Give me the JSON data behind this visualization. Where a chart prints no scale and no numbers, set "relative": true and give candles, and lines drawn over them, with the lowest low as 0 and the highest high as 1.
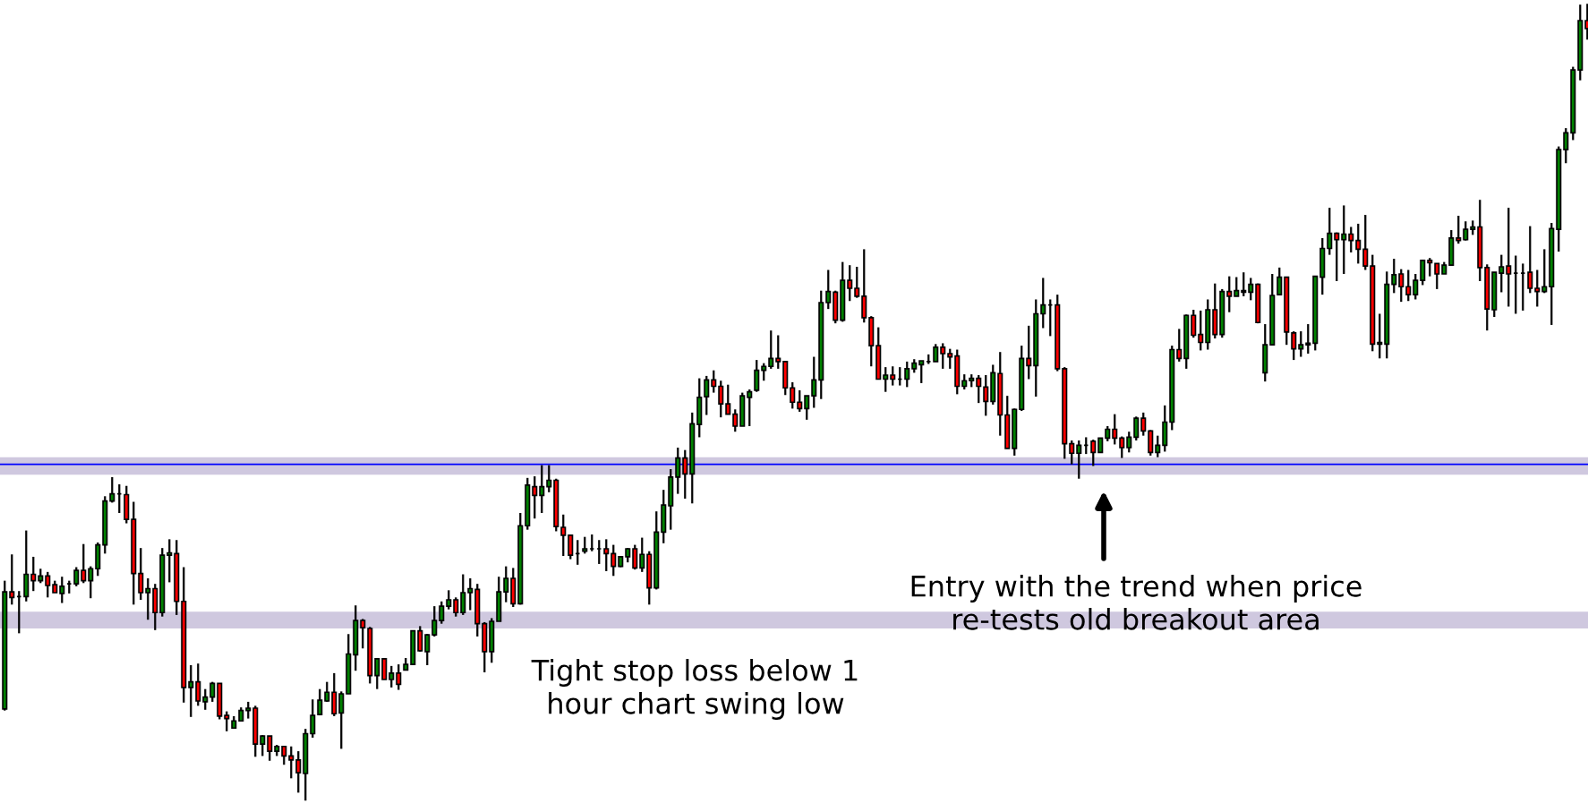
{
  "chart_data": {
    "type": "candlestick",
    "relative": true,
    "grid": false,
    "legend": false,
    "categories": [
      null,
      null,
      null,
      null,
      null,
      null,
      null,
      null,
      null,
      null,
      null,
      null,
      null,
      null,
      null,
      null,
      null,
      null,
      null,
      null,
      null,
      null,
      null,
      null,
      null,
      null,
      null,
      null,
      null,
      null,
      null,
      null,
      null,
      null,
      null,
      null,
      null,
      null,
      null,
      null,
      null,
      null,
      null,
      null,
      null,
      null,
      null,
      null,
      null,
      null,
      null,
      null,
      null,
      null,
      null,
      null,
      null,
      null,
      null,
      null,
      null,
      null,
      null,
      null,
      null,
      null,
      null,
      null,
      null,
      null,
      null,
      null,
      null,
      null,
      null,
      null,
      null,
      null,
      null,
      null,
      null,
      null,
      null,
      null,
      null,
      null,
      null,
      null,
      null,
      null,
      null,
      null,
      null,
      null,
      null,
      null,
      null,
      null,
      null,
      null,
      null,
      null,
      null,
      null,
      null,
      null,
      null,
      null,
      null,
      null,
      null,
      null,
      null,
      null,
      null,
      null,
      null,
      null,
      null,
      null,
      null,
      null,
      null,
      null,
      null,
      null,
      null,
      null,
      null,
      null,
      null,
      null,
      null,
      null,
      null,
      null,
      null,
      null,
      null,
      null,
      null,
      null,
      null,
      null,
      null,
      null,
      null,
      null,
      null,
      null,
      null,
      null,
      null,
      null,
      null,
      null,
      null,
      null,
      null,
      null,
      null,
      null,
      null,
      null,
      null,
      null,
      null,
      null,
      null,
      null,
      null,
      null,
      null,
      null,
      null,
      null,
      null,
      null,
      null,
      null,
      null,
      null,
      null,
      null,
      null,
      null,
      null,
      null,
      null,
      null,
      null,
      null,
      null,
      null,
      null,
      null,
      null,
      null,
      null,
      null,
      null,
      null,
      null,
      null,
      null,
      null,
      null,
      null,
      null,
      null,
      null,
      null,
      null,
      null,
      null,
      null,
      null,
      null,
      null,
      null,
      null,
      null
    ],
    "ohlc": [
      [
        0.115,
        0.276,
        0.113,
        0.262
      ],
      [
        0.262,
        0.309,
        0.246,
        0.255
      ],
      [
        0.256,
        0.263,
        0.21,
        0.256
      ],
      [
        0.256,
        0.339,
        0.25,
        0.284
      ],
      [
        0.284,
        0.306,
        0.263,
        0.276
      ],
      [
        0.276,
        0.291,
        0.273,
        0.282
      ],
      [
        0.282,
        0.287,
        0.255,
        0.27
      ],
      [
        0.271,
        0.276,
        0.261,
        0.261
      ],
      [
        0.26,
        0.281,
        0.248,
        0.269
      ],
      [
        0.272,
        0.276,
        0.26,
        0.272
      ],
      [
        0.272,
        0.293,
        0.269,
        0.289
      ],
      [
        0.289,
        0.322,
        0.273,
        0.276
      ],
      [
        0.276,
        0.294,
        0.254,
        0.291
      ],
      [
        0.291,
        0.324,
        0.282,
        0.321
      ],
      [
        0.321,
        0.382,
        0.31,
        0.376
      ],
      [
        0.376,
        0.406,
        0.374,
        0.385
      ],
      [
        0.385,
        0.397,
        0.361,
        0.385
      ],
      [
        0.384,
        0.395,
        0.348,
        0.353
      ],
      [
        0.353,
        0.375,
        0.246,
        0.285
      ],
      [
        0.285,
        0.317,
        0.252,
        0.261
      ],
      [
        0.261,
        0.279,
        0.227,
        0.266
      ],
      [
        0.266,
        0.272,
        0.214,
        0.236
      ],
      [
        0.236,
        0.317,
        0.231,
        0.308
      ],
      [
        0.308,
        0.328,
        0.274,
        0.311
      ],
      [
        0.31,
        0.327,
        0.233,
        0.25
      ],
      [
        0.25,
        0.293,
        0.123,
        0.142
      ],
      [
        0.142,
        0.17,
        0.105,
        0.149
      ],
      [
        0.149,
        0.172,
        0.119,
        0.125
      ],
      [
        0.124,
        0.14,
        0.114,
        0.13
      ],
      [
        0.13,
        0.149,
        0.124,
        0.147
      ],
      [
        0.147,
        0.147,
        0.102,
        0.106
      ],
      [
        0.107,
        0.112,
        0.087,
        0.103
      ],
      [
        0.091,
        0.106,
        0.091,
        0.1
      ],
      [
        0.1,
        0.117,
        0.1,
        0.113
      ],
      [
        0.113,
        0.124,
        0.103,
        0.116
      ],
      [
        0.116,
        0.119,
        0.055,
        0.071
      ],
      [
        0.071,
        0.082,
        0.056,
        0.081
      ],
      [
        0.081,
        0.081,
        0.05,
        0.062
      ],
      [
        0.062,
        0.07,
        0.056,
        0.068
      ],
      [
        0.068,
        0.068,
        0.045,
        0.056
      ],
      [
        0.056,
        0.068,
        0.028,
        0.051
      ],
      [
        0.051,
        0.062,
        0.01,
        0.035
      ],
      [
        0.034,
        0.09,
        0.0,
        0.084
      ],
      [
        0.084,
        0.127,
        0.079,
        0.107
      ],
      [
        0.108,
        0.14,
        0.107,
        0.126
      ],
      [
        0.125,
        0.149,
        0.124,
        0.136
      ],
      [
        0.136,
        0.16,
        0.106,
        0.109
      ],
      [
        0.11,
        0.137,
        0.065,
        0.134
      ],
      [
        0.134,
        0.209,
        0.134,
        0.184
      ],
      [
        0.183,
        0.245,
        0.163,
        0.226
      ],
      [
        0.226,
        0.228,
        0.191,
        0.217
      ],
      [
        0.216,
        0.218,
        0.147,
        0.157
      ],
      [
        0.157,
        0.179,
        0.14,
        0.178
      ],
      [
        0.178,
        0.178,
        0.152,
        0.152
      ],
      [
        0.152,
        0.169,
        0.142,
        0.16
      ],
      [
        0.16,
        0.171,
        0.139,
        0.146
      ],
      [
        0.164,
        0.179,
        0.164,
        0.171
      ],
      [
        0.171,
        0.213,
        0.17,
        0.213
      ],
      [
        0.213,
        0.219,
        0.187,
        0.188
      ],
      [
        0.187,
        0.209,
        0.17,
        0.208
      ],
      [
        0.208,
        0.244,
        0.206,
        0.226
      ],
      [
        0.226,
        0.25,
        0.222,
        0.244
      ],
      [
        0.244,
        0.264,
        0.24,
        0.252
      ],
      [
        0.252,
        0.255,
        0.231,
        0.236
      ],
      [
        0.236,
        0.284,
        0.233,
        0.261
      ],
      [
        0.261,
        0.279,
        0.239,
        0.266
      ],
      [
        0.265,
        0.272,
        0.206,
        0.222
      ],
      [
        0.222,
        0.224,
        0.161,
        0.187
      ],
      [
        0.187,
        0.229,
        0.173,
        0.225
      ],
      [
        0.225,
        0.281,
        0.225,
        0.262
      ],
      [
        0.262,
        0.294,
        0.249,
        0.279
      ],
      [
        0.279,
        0.292,
        0.243,
        0.247
      ],
      [
        0.247,
        0.361,
        0.246,
        0.345
      ],
      [
        0.345,
        0.405,
        0.34,
        0.396
      ],
      [
        0.394,
        0.407,
        0.354,
        0.383
      ],
      [
        0.383,
        0.421,
        0.361,
        0.394
      ],
      [
        0.394,
        0.421,
        0.387,
        0.402
      ],
      [
        0.402,
        0.404,
        0.338,
        0.344
      ],
      [
        0.343,
        0.359,
        0.307,
        0.333
      ],
      [
        0.333,
        0.334,
        0.303,
        0.308
      ],
      [
        0.31,
        0.327,
        0.296,
        0.31
      ],
      [
        0.313,
        0.331,
        0.31,
        0.316
      ],
      [
        0.316,
        0.334,
        0.313,
        0.316
      ],
      [
        0.316,
        0.327,
        0.297,
        0.316
      ],
      [
        0.316,
        0.328,
        0.288,
        0.31
      ],
      [
        0.31,
        0.321,
        0.282,
        0.294
      ],
      [
        0.294,
        0.307,
        0.293,
        0.306
      ],
      [
        0.306,
        0.317,
        0.299,
        0.316
      ],
      [
        0.316,
        0.321,
        0.29,
        0.292
      ],
      [
        0.292,
        0.33,
        0.287,
        0.309
      ],
      [
        0.309,
        0.313,
        0.246,
        0.267
      ],
      [
        0.267,
        0.363,
        0.265,
        0.337
      ],
      [
        0.337,
        0.39,
        0.323,
        0.371
      ],
      [
        0.37,
        0.416,
        0.34,
        0.406
      ],
      [
        0.406,
        0.443,
        0.385,
        0.43
      ],
      [
        0.43,
        0.44,
        0.379,
        0.41
      ],
      [
        0.41,
        0.487,
        0.373,
        0.473
      ],
      [
        0.472,
        0.53,
        0.456,
        0.506
      ],
      [
        0.507,
        0.533,
        0.484,
        0.528
      ],
      [
        0.528,
        0.54,
        0.512,
        0.52
      ],
      [
        0.52,
        0.527,
        0.481,
        0.498
      ],
      [
        0.498,
        0.522,
        0.485,
        0.485
      ],
      [
        0.485,
        0.491,
        0.463,
        0.47
      ],
      [
        0.47,
        0.512,
        0.47,
        0.508
      ],
      [
        0.506,
        0.516,
        0.47,
        0.513
      ],
      [
        0.515,
        0.553,
        0.513,
        0.54
      ],
      [
        0.54,
        0.549,
        0.527,
        0.545
      ],
      [
        0.545,
        0.59,
        0.542,
        0.555
      ],
      [
        0.555,
        0.584,
        0.542,
        0.551
      ],
      [
        0.551,
        0.551,
        0.509,
        0.518
      ],
      [
        0.518,
        0.525,
        0.492,
        0.5
      ],
      [
        0.5,
        0.515,
        0.488,
        0.492
      ],
      [
        0.492,
        0.508,
        0.478,
        0.508
      ],
      [
        0.508,
        0.557,
        0.493,
        0.528
      ],
      [
        0.528,
        0.64,
        0.504,
        0.625
      ],
      [
        0.625,
        0.666,
        0.617,
        0.639
      ],
      [
        0.638,
        0.64,
        0.599,
        0.603
      ],
      [
        0.603,
        0.676,
        0.601,
        0.653
      ],
      [
        0.653,
        0.672,
        0.627,
        0.643
      ],
      [
        0.643,
        0.67,
        0.631,
        0.633
      ],
      [
        0.633,
        0.692,
        0.6,
        0.606
      ],
      [
        0.606,
        0.608,
        0.545,
        0.571
      ],
      [
        0.571,
        0.594,
        0.529,
        0.529
      ],
      [
        0.529,
        0.544,
        0.513,
        0.534
      ],
      [
        0.534,
        0.545,
        0.521,
        0.529
      ],
      [
        0.529,
        0.544,
        0.521,
        0.529
      ],
      [
        0.529,
        0.551,
        0.519,
        0.542
      ],
      [
        0.542,
        0.554,
        0.537,
        0.549
      ],
      [
        0.547,
        0.552,
        0.524,
        0.552
      ],
      [
        0.551,
        0.56,
        0.548,
        0.551
      ],
      [
        0.551,
        0.573,
        0.551,
        0.569
      ],
      [
        0.569,
        0.574,
        0.542,
        0.561
      ],
      [
        0.561,
        0.567,
        0.542,
        0.557
      ],
      [
        0.558,
        0.566,
        0.51,
        0.52
      ],
      [
        0.52,
        0.535,
        0.516,
        0.527
      ],
      [
        0.527,
        0.535,
        0.519,
        0.53
      ],
      [
        0.53,
        0.534,
        0.499,
        0.52
      ],
      [
        0.519,
        0.534,
        0.483,
        0.501
      ],
      [
        0.501,
        0.547,
        0.497,
        0.537
      ],
      [
        0.536,
        0.563,
        0.458,
        0.484
      ],
      [
        0.484,
        0.508,
        0.442,
        0.442
      ],
      [
        0.442,
        0.492,
        0.433,
        0.491
      ],
      [
        0.491,
        0.571,
        0.489,
        0.555
      ],
      [
        0.555,
        0.596,
        0.529,
        0.546
      ],
      [
        0.546,
        0.629,
        0.507,
        0.611
      ],
      [
        0.611,
        0.656,
        0.593,
        0.622
      ],
      [
        0.622,
        0.629,
        0.583,
        0.622
      ],
      [
        0.622,
        0.635,
        0.539,
        0.542
      ],
      [
        0.542,
        0.544,
        0.429,
        0.448
      ],
      [
        0.448,
        0.452,
        0.422,
        0.436
      ],
      [
        0.436,
        0.452,
        0.404,
        0.446
      ],
      [
        0.446,
        0.456,
        0.435,
        0.446
      ],
      [
        0.451,
        0.453,
        0.42,
        0.437
      ],
      [
        0.437,
        0.455,
        0.437,
        0.455
      ],
      [
        0.455,
        0.47,
        0.451,
        0.466
      ],
      [
        0.466,
        0.485,
        0.447,
        0.455
      ],
      [
        0.455,
        0.457,
        0.43,
        0.443
      ],
      [
        0.443,
        0.463,
        0.437,
        0.456
      ],
      [
        0.456,
        0.482,
        0.452,
        0.48
      ],
      [
        0.48,
        0.487,
        0.458,
        0.464
      ],
      [
        0.464,
        0.465,
        0.433,
        0.437
      ],
      [
        0.437,
        0.458,
        0.431,
        0.446
      ],
      [
        0.446,
        0.496,
        0.438,
        0.475
      ],
      [
        0.475,
        0.571,
        0.465,
        0.566
      ],
      [
        0.566,
        0.592,
        0.551,
        0.555
      ],
      [
        0.555,
        0.61,
        0.542,
        0.609
      ],
      [
        0.609,
        0.616,
        0.581,
        0.584
      ],
      [
        0.585,
        0.615,
        0.565,
        0.575
      ],
      [
        0.575,
        0.629,
        0.566,
        0.616
      ],
      [
        0.616,
        0.649,
        0.58,
        0.585
      ],
      [
        0.585,
        0.642,
        0.581,
        0.639
      ],
      [
        0.639,
        0.658,
        0.613,
        0.633
      ],
      [
        0.633,
        0.657,
        0.633,
        0.64
      ],
      [
        0.64,
        0.663,
        0.633,
        0.638
      ],
      [
        0.638,
        0.656,
        0.628,
        0.648
      ],
      [
        0.648,
        0.649,
        0.599,
        0.6
      ],
      [
        0.537,
        0.598,
        0.526,
        0.572
      ],
      [
        0.572,
        0.661,
        0.572,
        0.634
      ],
      [
        0.635,
        0.669,
        0.634,
        0.657
      ],
      [
        0.657,
        0.657,
        0.572,
        0.588
      ],
      [
        0.587,
        0.589,
        0.553,
        0.567
      ],
      [
        0.567,
        0.589,
        0.557,
        0.572
      ],
      [
        0.572,
        0.598,
        0.561,
        0.574
      ],
      [
        0.574,
        0.658,
        0.565,
        0.658
      ],
      [
        0.657,
        0.706,
        0.635,
        0.693
      ],
      [
        0.693,
        0.744,
        0.685,
        0.712
      ],
      [
        0.712,
        0.713,
        0.652,
        0.704
      ],
      [
        0.704,
        0.747,
        0.661,
        0.711
      ],
      [
        0.711,
        0.72,
        0.688,
        0.703
      ],
      [
        0.703,
        0.724,
        0.674,
        0.692
      ],
      [
        0.692,
        0.735,
        0.666,
        0.671
      ],
      [
        0.671,
        0.685,
        0.564,
        0.573
      ],
      [
        0.573,
        0.611,
        0.555,
        0.575
      ],
      [
        0.573,
        0.664,
        0.555,
        0.648
      ],
      [
        0.648,
        0.68,
        0.637,
        0.66
      ],
      [
        0.661,
        0.667,
        0.626,
        0.645
      ],
      [
        0.645,
        0.666,
        0.627,
        0.635
      ],
      [
        0.635,
        0.661,
        0.629,
        0.653
      ],
      [
        0.653,
        0.679,
        0.647,
        0.678
      ],
      [
        0.678,
        0.681,
        0.658,
        0.675
      ],
      [
        0.674,
        0.674,
        0.642,
        0.661
      ],
      [
        0.661,
        0.676,
        0.661,
        0.672
      ],
      [
        0.672,
        0.716,
        0.672,
        0.706
      ],
      [
        0.706,
        0.734,
        0.699,
        0.703
      ],
      [
        0.704,
        0.727,
        0.703,
        0.717
      ],
      [
        0.717,
        0.728,
        0.71,
        0.72
      ],
      [
        0.72,
        0.754,
        0.652,
        0.669
      ],
      [
        0.669,
        0.673,
        0.59,
        0.617
      ],
      [
        0.616,
        0.663,
        0.607,
        0.663
      ],
      [
        0.662,
        0.685,
        0.638,
        0.67
      ],
      [
        0.671,
        0.744,
        0.62,
        0.661
      ],
      [
        0.662,
        0.684,
        0.611,
        0.662
      ],
      [
        0.662,
        0.674,
        0.615,
        0.662
      ],
      [
        0.663,
        0.721,
        0.637,
        0.643
      ],
      [
        0.643,
        0.666,
        0.62,
        0.639
      ],
      [
        0.639,
        0.692,
        0.637,
        0.645
      ],
      [
        0.645,
        0.725,
        0.597,
        0.718
      ],
      [
        0.717,
        0.821,
        0.689,
        0.817
      ],
      [
        0.817,
        0.844,
        0.8,
        0.838
      ],
      [
        0.838,
        0.921,
        0.829,
        0.917
      ],
      [
        0.917,
        0.999,
        0.904,
        0.979
      ],
      [
        0.979,
        1.0,
        0.955,
        0.969
      ]
    ],
    "ref_lines": [
      {
        "axis": "y",
        "value": 0.422,
        "color": "#0000ff"
      }
    ],
    "bands": [
      {
        "axis": "y",
        "from": 0.409,
        "to": 0.431,
        "color": "#cfc8df"
      },
      {
        "axis": "y",
        "from": 0.216,
        "to": 0.237,
        "color": "#cfc8df"
      }
    ],
    "annotations": [
      "Entry with the trend when price\nre-tests old breakout area",
      "Tight stop loss below 1\nhour chart swing low"
    ]
  }
}
